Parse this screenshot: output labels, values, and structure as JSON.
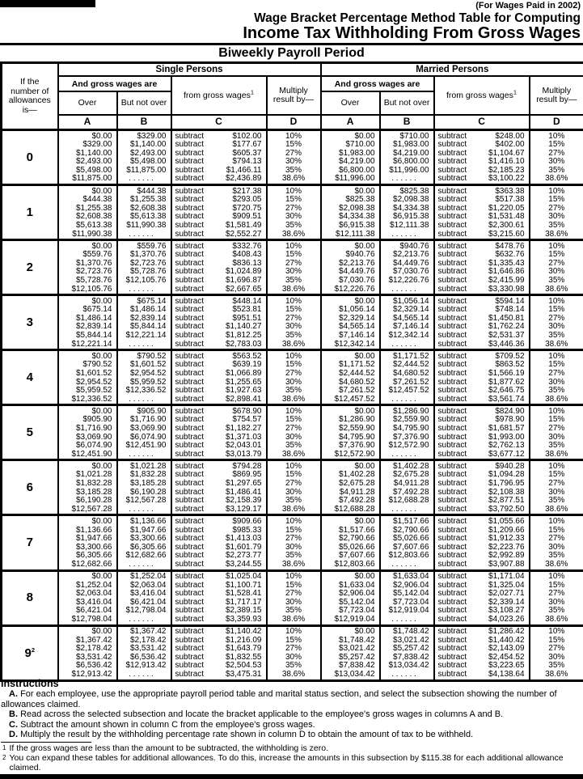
{
  "header": {
    "paid_note": "(For Wages Paid in 2002)",
    "title_line1": "Wage Bracket Percentage Method Table for Computing",
    "title_line2": "Income Tax Withholding From Gross Wages",
    "period_title": "Biweekly Payroll Period"
  },
  "table": {
    "allowance_header": "If the number of allowances is—",
    "sections": [
      "Single Persons",
      "Married Persons"
    ],
    "gross_wages_header": "And gross wages are",
    "over_header": "Over",
    "not_over_header": "But not over",
    "subtract_header": "from gross wages",
    "subtract_sup": "1",
    "multiply_header": "Multiply result by—",
    "col_letters": [
      "A",
      "B",
      "C",
      "D"
    ],
    "subtract_word": "subtract",
    "pcts": [
      "10%",
      "15%",
      "27%",
      "30%",
      "35%",
      "38.6%"
    ],
    "rows": [
      {
        "allowances": "0",
        "single": {
          "over": [
            "$0.00",
            "$329.00",
            "$1,140.00",
            "$2,493.00",
            "$5,498.00",
            "$11,875.00"
          ],
          "not_over": [
            "$329.00",
            "$1,140.00",
            "$2,493.00",
            "$5,498.00",
            "$11,875.00",
            ". . . . . ."
          ],
          "subtract": [
            "$102.00",
            "$177.67",
            "$605.37",
            "$794.13",
            "$1,466.11",
            "$2,436.89"
          ]
        },
        "married": {
          "over": [
            "$0.00",
            "$710.00",
            "$1,983.00",
            "$4,219.00",
            "$6,800.00",
            "$11,996.00"
          ],
          "not_over": [
            "$710.00",
            "$1,983.00",
            "$4,219.00",
            "$6,800.00",
            "$11,996.00",
            ". . . . . ."
          ],
          "subtract": [
            "$248.00",
            "$402.00",
            "$1,104.67",
            "$1,416.10",
            "$2,185.23",
            "$3,100.22"
          ]
        }
      },
      {
        "allowances": "1",
        "single": {
          "over": [
            "$0.00",
            "$444.38",
            "$1,255.38",
            "$2,608.38",
            "$5,613.38",
            "$11,990.38"
          ],
          "not_over": [
            "$444.38",
            "$1,255.38",
            "$2,608.38",
            "$5,613.38",
            "$11,990.38",
            ". . . . . ."
          ],
          "subtract": [
            "$217.38",
            "$293.05",
            "$720.75",
            "$909.51",
            "$1,581.49",
            "$2,552.27"
          ]
        },
        "married": {
          "over": [
            "$0.00",
            "$825.38",
            "$2,098.38",
            "$4,334.38",
            "$6,915.38",
            "$12,111.38"
          ],
          "not_over": [
            "$825.38",
            "$2,098.38",
            "$4,334.38",
            "$6,915.38",
            "$12,111.38",
            ". . . . . ."
          ],
          "subtract": [
            "$363.38",
            "$517.38",
            "$1,220.05",
            "$1,531.48",
            "$2,300.61",
            "$3,215.60"
          ]
        }
      },
      {
        "allowances": "2",
        "single": {
          "over": [
            "$0.00",
            "$559.76",
            "$1,370.76",
            "$2,723.76",
            "$5,728.76",
            "$12,105.76"
          ],
          "not_over": [
            "$559.76",
            "$1,370.76",
            "$2,723.76",
            "$5,728.76",
            "$12,105.76",
            ". . . . . ."
          ],
          "subtract": [
            "$332.76",
            "$408.43",
            "$836.13",
            "$1,024.89",
            "$1,696.87",
            "$2,667.65"
          ]
        },
        "married": {
          "over": [
            "$0.00",
            "$940.76",
            "$2,213.76",
            "$4,449.76",
            "$7,030.76",
            "$12,226.76"
          ],
          "not_over": [
            "$940.76",
            "$2,213.76",
            "$4,449.76",
            "$7,030.76",
            "$12,226.76",
            ". . . . . ."
          ],
          "subtract": [
            "$478.76",
            "$632.76",
            "$1,335.43",
            "$1,646.86",
            "$2,415.99",
            "$3,330.98"
          ]
        }
      },
      {
        "allowances": "3",
        "single": {
          "over": [
            "$0.00",
            "$675.14",
            "$1,486.14",
            "$2,839.14",
            "$5,844.14",
            "$12,221.14"
          ],
          "not_over": [
            "$675.14",
            "$1,486.14",
            "$2,839.14",
            "$5,844.14",
            "$12,221.14",
            ". . . . . ."
          ],
          "subtract": [
            "$448.14",
            "$523.81",
            "$951.51",
            "$1,140.27",
            "$1,812.25",
            "$2,783.03"
          ]
        },
        "married": {
          "over": [
            "$0.00",
            "$1,056.14",
            "$2,329.14",
            "$4,565.14",
            "$7,146.14",
            "$12,342.14"
          ],
          "not_over": [
            "$1,056.14",
            "$2,329.14",
            "$4,565.14",
            "$7,146.14",
            "$12,342.14",
            ". . . . . ."
          ],
          "subtract": [
            "$594.14",
            "$748.14",
            "$1,450.81",
            "$1,762.24",
            "$2,531.37",
            "$3,446.36"
          ]
        }
      },
      {
        "allowances": "4",
        "single": {
          "over": [
            "$0.00",
            "$790.52",
            "$1,601.52",
            "$2,954.52",
            "$5,959.52",
            "$12,336.52"
          ],
          "not_over": [
            "$790.52",
            "$1,601.52",
            "$2,954.52",
            "$5,959.52",
            "$12,336.52",
            ". . . . . ."
          ],
          "subtract": [
            "$563.52",
            "$639.19",
            "$1,066.89",
            "$1,255.65",
            "$1,927.63",
            "$2,898.41"
          ]
        },
        "married": {
          "over": [
            "$0.00",
            "$1,171.52",
            "$2,444.52",
            "$4,680.52",
            "$7,261.52",
            "$12,457.52"
          ],
          "not_over": [
            "$1,171.52",
            "$2,444.52",
            "$4,680.52",
            "$7,261.52",
            "$12,457.52",
            ". . . . . ."
          ],
          "subtract": [
            "$709.52",
            "$863.52",
            "$1,566.19",
            "$1,877.62",
            "$2,646.75",
            "$3,561.74"
          ]
        }
      },
      {
        "allowances": "5",
        "single": {
          "over": [
            "$0.00",
            "$905.90",
            "$1,716.90",
            "$3,069.90",
            "$6,074.90",
            "$12,451.90"
          ],
          "not_over": [
            "$905.90",
            "$1,716.90",
            "$3,069.90",
            "$6,074.90",
            "$12,451.90",
            ". . . . . ."
          ],
          "subtract": [
            "$678.90",
            "$754.57",
            "$1,182.27",
            "$1,371.03",
            "$2,043.01",
            "$3,013.79"
          ]
        },
        "married": {
          "over": [
            "$0.00",
            "$1,286.90",
            "$2,559.90",
            "$4,795.90",
            "$7,376.90",
            "$12,572.90"
          ],
          "not_over": [
            "$1,286.90",
            "$2,559.90",
            "$4,795.90",
            "$7,376.90",
            "$12,572.90",
            ". . . . . ."
          ],
          "subtract": [
            "$824.90",
            "$978.90",
            "$1,681.57",
            "$1,993.00",
            "$2,762.13",
            "$3,677.12"
          ]
        }
      },
      {
        "allowances": "6",
        "single": {
          "over": [
            "$0.00",
            "$1,021.28",
            "$1,832.28",
            "$3,185.28",
            "$6,190.28",
            "$12,567.28"
          ],
          "not_over": [
            "$1,021.28",
            "$1,832.28",
            "$3,185.28",
            "$6,190.28",
            "$12,567.28",
            ". . . . . ."
          ],
          "subtract": [
            "$794.28",
            "$869.95",
            "$1,297.65",
            "$1,486.41",
            "$2,158.39",
            "$3,129.17"
          ]
        },
        "married": {
          "over": [
            "$0.00",
            "$1,402.28",
            "$2,675.28",
            "$4,911.28",
            "$7,492.28",
            "$12,688.28"
          ],
          "not_over": [
            "$1,402.28",
            "$2,675.28",
            "$4,911.28",
            "$7,492.28",
            "$12,688.28",
            ". . . . . ."
          ],
          "subtract": [
            "$940.28",
            "$1,094.28",
            "$1,796.95",
            "$2,108.38",
            "$2,877.51",
            "$3,792.50"
          ]
        }
      },
      {
        "allowances": "7",
        "single": {
          "over": [
            "$0.00",
            "$1,136.66",
            "$1,947.66",
            "$3,300.66",
            "$6,305.66",
            "$12,682.66"
          ],
          "not_over": [
            "$1,136.66",
            "$1,947.66",
            "$3,300.66",
            "$6,305.66",
            "$12,682.66",
            ". . . . . ."
          ],
          "subtract": [
            "$909.66",
            "$985.33",
            "$1,413.03",
            "$1,601.79",
            "$2,273.77",
            "$3,244.55"
          ]
        },
        "married": {
          "over": [
            "$0.00",
            "$1,517.66",
            "$2,790.66",
            "$5,026.66",
            "$7,607.66",
            "$12,803.66"
          ],
          "not_over": [
            "$1,517.66",
            "$2,790.66",
            "$5,026.66",
            "$7,607.66",
            "$12,803.66",
            ". . . . . ."
          ],
          "subtract": [
            "$1,055.66",
            "$1,209.66",
            "$1,912.33",
            "$2,223.76",
            "$2,992.89",
            "$3,907.88"
          ]
        }
      },
      {
        "allowances": "8",
        "single": {
          "over": [
            "$0.00",
            "$1,252.04",
            "$2,063.04",
            "$3,416.04",
            "$6,421.04",
            "$12,798.04"
          ],
          "not_over": [
            "$1,252.04",
            "$2,063.04",
            "$3,416.04",
            "$6,421.04",
            "$12,798.04",
            ". . . . . ."
          ],
          "subtract": [
            "$1,025.04",
            "$1,100.71",
            "$1,528.41",
            "$1,717.17",
            "$2,389.15",
            "$3,359.93"
          ]
        },
        "married": {
          "over": [
            "$0.00",
            "$1,633.04",
            "$2,906.04",
            "$5,142.04",
            "$7,723.04",
            "$12,919.04"
          ],
          "not_over": [
            "$1,633.04",
            "$2,906.04",
            "$5,142.04",
            "$7,723.04",
            "$12,919.04",
            ". . . . . ."
          ],
          "subtract": [
            "$1,171.04",
            "$1,325.04",
            "$2,027.71",
            "$2,339.14",
            "$3,108.27",
            "$4,023.26"
          ]
        }
      },
      {
        "allowances": "9",
        "allowances_sup": "2",
        "single": {
          "over": [
            "$0.00",
            "$1,367.42",
            "$2,178.42",
            "$3,531.42",
            "$6,536.42",
            "$12,913.42"
          ],
          "not_over": [
            "$1,367.42",
            "$2,178.42",
            "$3,531.42",
            "$6,536.42",
            "$12,913.42",
            ". . . . . ."
          ],
          "subtract": [
            "$1,140.42",
            "$1,216.09",
            "$1,643.79",
            "$1,832.55",
            "$2,504.53",
            "$3,475.31"
          ]
        },
        "married": {
          "over": [
            "$0.00",
            "$1,748.42",
            "$3,021.42",
            "$5,257.42",
            "$7,838.42",
            "$13,034.42"
          ],
          "not_over": [
            "$1,748.42",
            "$3,021.42",
            "$5,257.42",
            "$7,838.42",
            "$13,034.42",
            ". . . . . ."
          ],
          "subtract": [
            "$1,286.42",
            "$1,440.42",
            "$2,143.09",
            "$2,454.52",
            "$3,223.65",
            "$4,138.64"
          ]
        }
      }
    ]
  },
  "instructions": {
    "title": "Instructions",
    "steps": [
      {
        "label": "A.",
        "text": "For each employee,  use the appropriate payroll period table and marital status section, and select the subsection showing the number of allowances claimed."
      },
      {
        "label": "B.",
        "text": "Read across the selected subsection and locate the bracket applicable to the employee's gross wages in columns A and B."
      },
      {
        "label": "C.",
        "text": "Subtract the amount shown in column C from the employee's gross wages."
      },
      {
        "label": "D.",
        "text": "Multiply the result by the withholding percentage rate shown in column D to obtain the amount of tax to be withheld."
      }
    ]
  },
  "footnotes": [
    {
      "marker": "1",
      "text": "If the gross wages are less than the amount to be subtracted, the withholding is zero."
    },
    {
      "marker": "2",
      "text": "You can expand these tables for additional allowances. To do this, increase the amounts in this subsection by $115.38 for each additional allowance claimed."
    }
  ]
}
